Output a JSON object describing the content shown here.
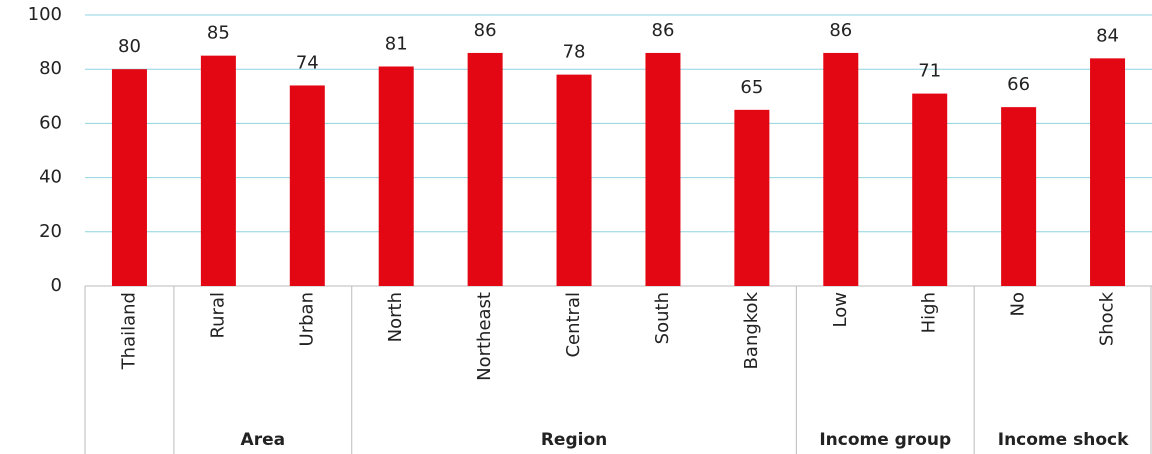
{
  "chart_data": {
    "type": "bar",
    "categories": [
      "Thailand",
      "Rural",
      "Urban",
      "North",
      "Northeast",
      "Central",
      "South",
      "Bangkok",
      "Low",
      "High",
      "No",
      "Shock"
    ],
    "category_groups": [
      null,
      "Area",
      "Area",
      "Region",
      "Region",
      "Region",
      "Region",
      "Region",
      "Income group",
      "Income group",
      "Income shock",
      "Income shock"
    ],
    "values": [
      80,
      85,
      74,
      81,
      86,
      78,
      86,
      65,
      86,
      71,
      66,
      84
    ],
    "color": "#e30613",
    "ylim": [
      0,
      100
    ],
    "yticks": [
      0,
      20,
      40,
      60,
      80,
      100
    ],
    "grid": true,
    "grid_color": "#8fd4e0"
  }
}
